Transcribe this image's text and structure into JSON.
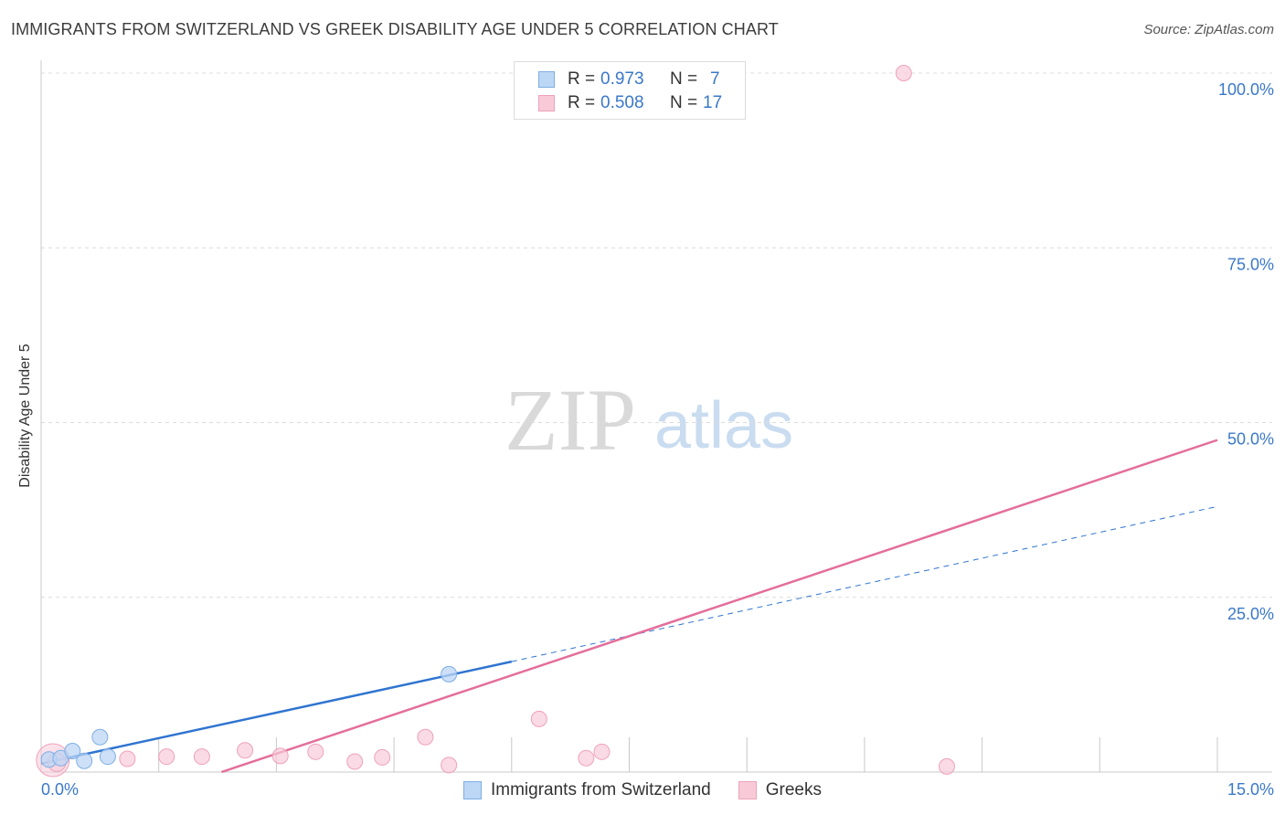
{
  "header": {
    "title": "IMMIGRANTS FROM SWITZERLAND VS GREEK DISABILITY AGE UNDER 5 CORRELATION CHART",
    "source": "Source: ZipAtlas.com"
  },
  "watermark": {
    "zip": "ZIP",
    "atlas": "atlas"
  },
  "stats": [
    {
      "series": "Immigrants from Switzerland",
      "r_label": "R =",
      "r_value": "0.973",
      "n_label": "N =",
      "n_value": "7"
    },
    {
      "series": "Greeks",
      "r_label": "R =",
      "r_value": "0.508",
      "n_label": "N =",
      "n_value": "17"
    }
  ],
  "colors": {
    "swiss_fill": "#bcd6f5",
    "swiss_stroke": "#7eaee3",
    "swiss_line": "#2f74d0",
    "greek_fill": "#f8cad8",
    "greek_stroke": "#eea2ba",
    "greek_line": "#e46e9b",
    "tick_text": "#3a78c9",
    "grid": "#dcdcdc"
  },
  "chart_data": {
    "type": "scatter",
    "title": "IMMIGRANTS FROM SWITZERLAND VS GREEK DISABILITY AGE UNDER 5 CORRELATION CHART",
    "xlabel": "",
    "ylabel": "Disability Age Under 5",
    "xlim": [
      0,
      15
    ],
    "ylim": [
      0,
      100
    ],
    "x_tick_labels": [
      {
        "value": 0,
        "label": "0.0%"
      },
      {
        "value": 15,
        "label": "15.0%"
      }
    ],
    "y_tick_labels": [
      {
        "value": 25,
        "label": "25.0%"
      },
      {
        "value": 50,
        "label": "50.0%"
      },
      {
        "value": 75,
        "label": "75.0%"
      },
      {
        "value": 100,
        "label": "100.0%"
      }
    ],
    "x_minor_ticks": [
      1.5,
      3.0,
      4.5,
      6.0,
      7.5,
      9.0,
      10.5,
      12.0,
      13.5,
      15.0
    ],
    "series": [
      {
        "name": "Immigrants from Switzerland",
        "color": "#2f74d0",
        "points": [
          {
            "x": 0.1,
            "y": 1.8
          },
          {
            "x": 0.25,
            "y": 2.0
          },
          {
            "x": 0.4,
            "y": 3.0
          },
          {
            "x": 0.55,
            "y": 1.6
          },
          {
            "x": 0.75,
            "y": 5.0
          },
          {
            "x": 0.85,
            "y": 2.2
          },
          {
            "x": 5.2,
            "y": 14.0
          }
        ],
        "trend": {
          "x0": 0.0,
          "y0": 1.2,
          "x1": 6.0,
          "y1": 15.8,
          "dashed_to_x": 15.0,
          "dashed_to_y": 38.0
        }
      },
      {
        "name": "Greeks",
        "color": "#e46e9b",
        "points": [
          {
            "x": 0.15,
            "y": 1.7
          },
          {
            "x": 0.2,
            "y": 1.4
          },
          {
            "x": 1.1,
            "y": 1.9
          },
          {
            "x": 1.6,
            "y": 2.2
          },
          {
            "x": 2.05,
            "y": 2.2
          },
          {
            "x": 2.6,
            "y": 3.1
          },
          {
            "x": 3.05,
            "y": 2.3
          },
          {
            "x": 3.5,
            "y": 2.9
          },
          {
            "x": 4.0,
            "y": 1.5
          },
          {
            "x": 4.35,
            "y": 2.1
          },
          {
            "x": 4.9,
            "y": 5.0
          },
          {
            "x": 5.2,
            "y": 1.0
          },
          {
            "x": 6.35,
            "y": 7.6
          },
          {
            "x": 6.95,
            "y": 2.0
          },
          {
            "x": 7.15,
            "y": 2.9
          },
          {
            "x": 11.0,
            "y": 100.0
          },
          {
            "x": 11.55,
            "y": 0.8
          }
        ],
        "trend": {
          "x0": 2.3,
          "y0": 0.0,
          "x1": 15.0,
          "y1": 47.5
        }
      }
    ],
    "grid": true,
    "legend_position": "bottom-center"
  }
}
